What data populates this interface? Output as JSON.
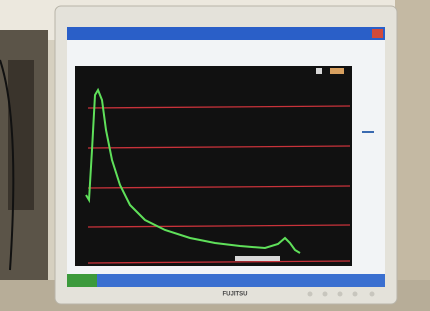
{
  "monitor": {
    "brand": "FUJITSU"
  }
}
